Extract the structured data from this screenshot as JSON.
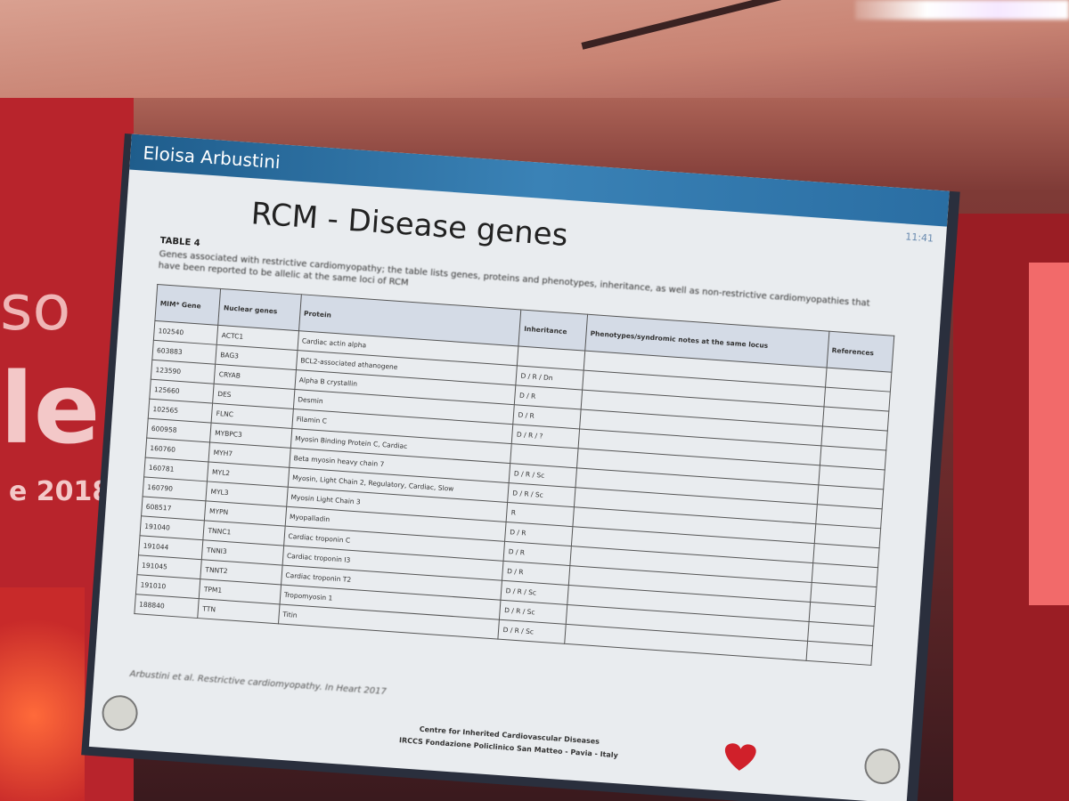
{
  "header": {
    "presenter": "Eloisa Arbustini",
    "time": "11:41"
  },
  "backdrop": {
    "lines": [
      "so",
      "le",
      "e 2018"
    ]
  },
  "slide": {
    "title": "RCM - Disease genes",
    "table_label": "TABLE 4",
    "caption": "Genes associated with restrictive cardiomyopathy; the table lists genes, proteins and phenotypes, inheritance, as well as non-restrictive cardiomyopathies that have been reported to be allelic at the same loci of RCM",
    "table": {
      "columns": [
        "MIM* Gene",
        "Nuclear genes",
        "Protein",
        "Inheritance",
        "Phenotypes/syndromic notes at the same locus",
        "References"
      ],
      "rows": [
        [
          "102540",
          "ACTC1",
          "Cardiac actin alpha",
          ""
        ],
        [
          "603883",
          "BAG3",
          "BCL2-associated athanogene",
          "D / R / Dn"
        ],
        [
          "123590",
          "CRYAB",
          "Alpha B crystallin",
          "D / R"
        ],
        [
          "125660",
          "DES",
          "Desmin",
          "D / R"
        ],
        [
          "102565",
          "FLNC",
          "Filamin C",
          "D / R / ?"
        ],
        [
          "600958",
          "MYBPC3",
          "Myosin Binding Protein C, Cardiac",
          ""
        ],
        [
          "160760",
          "MYH7",
          "Beta myosin heavy chain 7",
          "D / R / Sc"
        ],
        [
          "160781",
          "MYL2",
          "Myosin, Light Chain 2, Regulatory, Cardiac, Slow",
          "D / R / Sc"
        ],
        [
          "160790",
          "MYL3",
          "Myosin Light Chain 3",
          "R"
        ],
        [
          "608517",
          "MYPN",
          "Myopalladin",
          "D / R"
        ],
        [
          "191040",
          "TNNC1",
          "Cardiac troponin C",
          "D / R"
        ],
        [
          "191044",
          "TNNI3",
          "Cardiac troponin I3",
          "D / R"
        ],
        [
          "191045",
          "TNNT2",
          "Cardiac troponin T2",
          "D / R / Sc"
        ],
        [
          "191010",
          "TPM1",
          "Tropomyosin 1",
          "D / R / Sc"
        ],
        [
          "188840",
          "TTN",
          "Titin",
          "D / R / Sc"
        ]
      ]
    },
    "citation": "Arbustini et al. Restrictive cardiomyopathy. In Heart 2017",
    "footer": [
      "Centre for Inherited Cardiovascular Diseases",
      "IRCCS Fondazione Policlinico San Matteo - Pavia - Italy"
    ]
  }
}
